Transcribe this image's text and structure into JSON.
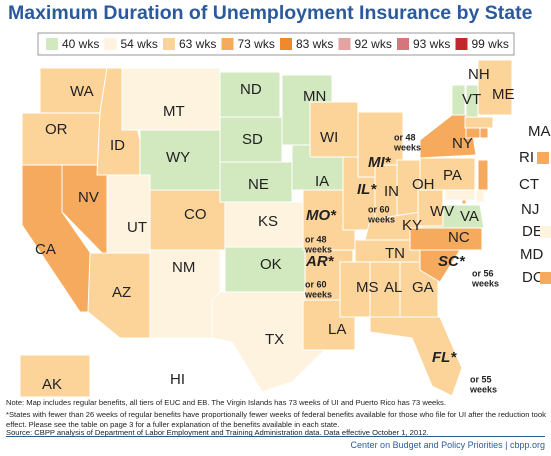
{
  "map": {
    "title": "Maximum Duration of Unemployment Insurance by State",
    "legend": [
      {
        "weeks": 40,
        "label": "40 wks",
        "color": "#d2e8be"
      },
      {
        "weeks": 54,
        "label": "54 wks",
        "color": "#fdf3df"
      },
      {
        "weeks": 63,
        "label": "63 wks",
        "color": "#fcd49a"
      },
      {
        "weeks": 73,
        "label": "73 wks",
        "color": "#f5aa5e"
      },
      {
        "weeks": 83,
        "label": "83 wks",
        "color": "#ee8a2b"
      },
      {
        "weeks": 92,
        "label": "92 wks",
        "color": "#e3a3a0"
      },
      {
        "weeks": 93,
        "label": "93 wks",
        "color": "#d5777a"
      },
      {
        "weeks": 99,
        "label": "99 wks",
        "color": "#c1272d"
      }
    ],
    "states": [
      {
        "label": "WA",
        "weeks": 63
      },
      {
        "label": "OR",
        "weeks": 63
      },
      {
        "label": "CA",
        "weeks": 73
      },
      {
        "label": "NV",
        "weeks": 73
      },
      {
        "label": "ID",
        "weeks": 63
      },
      {
        "label": "MT",
        "weeks": 54
      },
      {
        "label": "WY",
        "weeks": 40
      },
      {
        "label": "UT",
        "weeks": 54
      },
      {
        "label": "AZ",
        "weeks": 63
      },
      {
        "label": "CO",
        "weeks": 63
      },
      {
        "label": "NM",
        "weeks": 54
      },
      {
        "label": "ND",
        "weeks": 40
      },
      {
        "label": "SD",
        "weeks": 40
      },
      {
        "label": "NE",
        "weeks": 40
      },
      {
        "label": "KS",
        "weeks": 54
      },
      {
        "label": "OK",
        "weeks": 40
      },
      {
        "label": "TX",
        "weeks": 54
      },
      {
        "label": "MN",
        "weeks": 40
      },
      {
        "label": "IA",
        "weeks": 40
      },
      {
        "label": "MO*",
        "weeks": 63,
        "note": [
          "or 48",
          "weeks"
        ]
      },
      {
        "label": "AR*",
        "weeks": 63,
        "note": [
          "or 60",
          "weeks"
        ]
      },
      {
        "label": "LA",
        "weeks": 63
      },
      {
        "label": "WI",
        "weeks": 63
      },
      {
        "label": "IL*",
        "weeks": 63,
        "note": [
          "or 60",
          "weeks"
        ]
      },
      {
        "label": "MI*",
        "weeks": 63,
        "note": [
          "or 48",
          "weeks"
        ]
      },
      {
        "label": "IN",
        "weeks": 63
      },
      {
        "label": "OH",
        "weeks": 63
      },
      {
        "label": "KY",
        "weeks": 63
      },
      {
        "label": "TN",
        "weeks": 63
      },
      {
        "label": "MS",
        "weeks": 63
      },
      {
        "label": "AL",
        "weeks": 63
      },
      {
        "label": "GA",
        "weeks": 63
      },
      {
        "label": "FL*",
        "weeks": 63,
        "note": [
          "or 55",
          "weeks"
        ]
      },
      {
        "label": "SC*",
        "weeks": 73,
        "note": [
          "or 56",
          "weeks"
        ]
      },
      {
        "label": "NC",
        "weeks": 73
      },
      {
        "label": "VA",
        "weeks": 40
      },
      {
        "label": "WV",
        "weeks": 63
      },
      {
        "label": "PA",
        "weeks": 63
      },
      {
        "label": "NY",
        "weeks": 73
      },
      {
        "label": "VT",
        "weeks": 40
      },
      {
        "label": "NH",
        "weeks": 40
      },
      {
        "label": "ME",
        "weeks": 63
      },
      {
        "label": "MA",
        "weeks": 63
      },
      {
        "label": "RI",
        "weeks": 73
      },
      {
        "label": "CT",
        "weeks": 73
      },
      {
        "label": "NJ",
        "weeks": 73
      },
      {
        "label": "DE",
        "weeks": 54
      },
      {
        "label": "MD",
        "weeks": 54
      },
      {
        "label": "DC",
        "weeks": 73
      },
      {
        "label": "AK",
        "weeks": 63
      },
      {
        "label": "HI",
        "weeks": 54
      }
    ],
    "notes": [
      "Note: Map includes regular benefits, all tiers of EUC and EB. The Virgin Islands has 73 weeks of UI and Puerto Rico has 73 weeks.",
      "*States with fewer than 26 weeks of regular benefits have proportionally fewer weeks of federal benefits available for those who file for UI after the reduction took effect. Please see the table on page 3 for a fuller explanation of the benefits available in each state."
    ],
    "source": "Source: CBPP analysis of Department of Labor Employment and Training Administration data. Data effective October 1, 2012.",
    "footer": "Center on Budget and Policy Priorities | cbpp.org"
  }
}
